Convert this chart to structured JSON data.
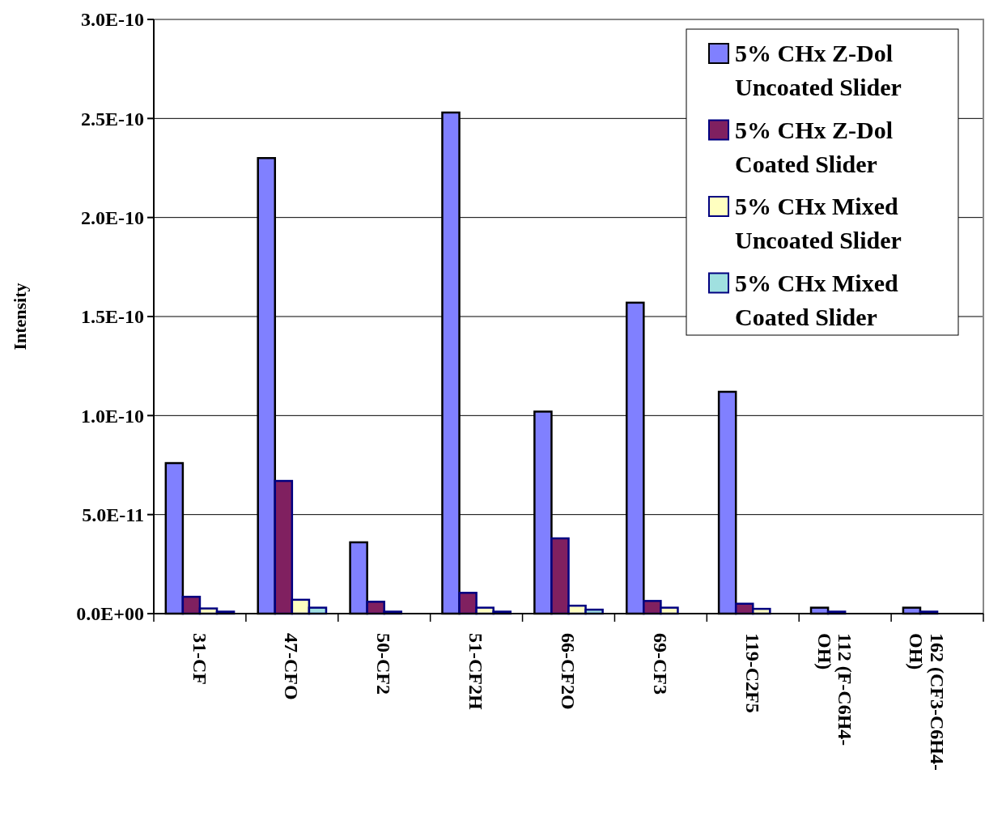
{
  "chart_data": {
    "type": "bar",
    "ylabel": "Intensity",
    "categories": [
      "31-CF",
      "47-CFO",
      "50-CF2",
      "51-CF2H",
      "66-CF2O",
      "69-CF3",
      "119-C2F5",
      "112 (F-C6H4-OH)",
      "162 (CF3-C6H4-OH)"
    ],
    "series": [
      {
        "name": "5% CHx Z-Dol Uncoated Slider",
        "color": "#8080ff",
        "values": [
          7.6e-11,
          2.3e-10,
          3.6e-11,
          2.53e-10,
          1.02e-10,
          1.57e-10,
          1.12e-10,
          3e-12,
          3e-12
        ]
      },
      {
        "name": "5% CHx Z-Dol Coated Slider",
        "color": "#802060",
        "values": [
          8.5e-12,
          6.7e-11,
          6e-12,
          1.05e-11,
          3.8e-11,
          6.4e-12,
          5e-12,
          1e-12,
          1e-12
        ]
      },
      {
        "name": "5% CHx Mixed Uncoated Slider",
        "color": "#ffffc0",
        "values": [
          2.6e-12,
          7e-12,
          1e-12,
          3e-12,
          4e-12,
          3e-12,
          2.4e-12,
          0,
          0
        ]
      },
      {
        "name": "5% CHx Mixed Coated Slider",
        "color": "#a0e0e0",
        "values": [
          1e-12,
          3e-12,
          null,
          1e-12,
          2e-12,
          null,
          null,
          0,
          0
        ]
      }
    ],
    "ylim": [
      0,
      3e-10
    ],
    "yticks": [
      {
        "value": 0,
        "label": "0.0E+00"
      },
      {
        "value": 5e-11,
        "label": "5.0E-11"
      },
      {
        "value": 1e-10,
        "label": "1.0E-10"
      },
      {
        "value": 1.5e-10,
        "label": "1.5E-10"
      },
      {
        "value": 2e-10,
        "label": "2.0E-10"
      },
      {
        "value": 2.5e-10,
        "label": "2.5E-10"
      },
      {
        "value": 3e-10,
        "label": "3.0E-10"
      }
    ],
    "grid": "y",
    "legend": "top right"
  }
}
